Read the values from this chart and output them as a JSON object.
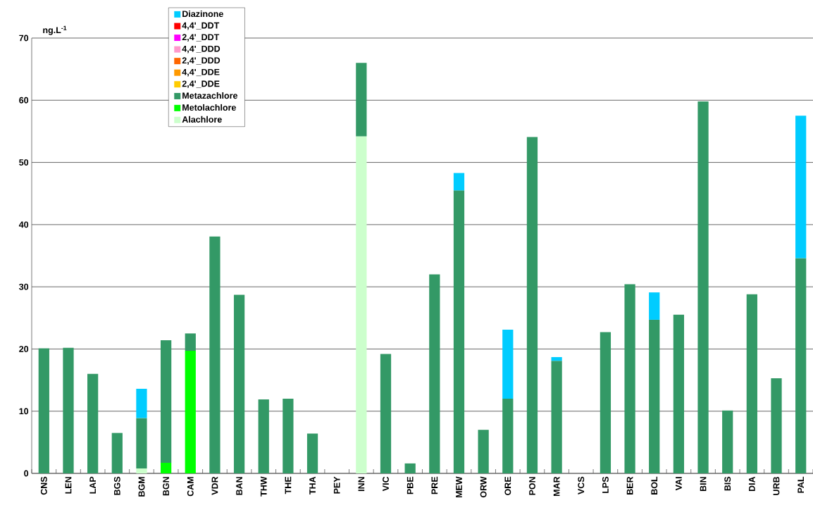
{
  "chart_data": {
    "type": "bar",
    "stacked": true,
    "ylabel": "ng.L$^{-1}$",
    "categories": [
      "CNS",
      "LEN",
      "LAP",
      "BGS",
      "BGM",
      "BGN",
      "CAM",
      "VDR",
      "BAN",
      "THW",
      "THE",
      "THA",
      "PEY",
      "INN",
      "VIC",
      "PBE",
      "PRE",
      "MEW",
      "ORW",
      "ORE",
      "PON",
      "MAR",
      "VCS",
      "LPS",
      "BER",
      "BOL",
      "VAI",
      "BIN",
      "BIS",
      "DIA",
      "URB",
      "PAL"
    ],
    "series": [
      {
        "name": "Alachlore",
        "color": "#ccffcc",
        "values": [
          null,
          null,
          null,
          null,
          0.8,
          null,
          null,
          null,
          null,
          null,
          null,
          null,
          null,
          54.2,
          null,
          null,
          null,
          null,
          null,
          null,
          null,
          null,
          null,
          null,
          null,
          null,
          null,
          null,
          null,
          null,
          null,
          null
        ]
      },
      {
        "name": "Metolachlore",
        "color": "#00ff00",
        "values": [
          null,
          null,
          null,
          null,
          null,
          1.7,
          19.7,
          null,
          null,
          null,
          null,
          null,
          null,
          null,
          null,
          null,
          null,
          null,
          null,
          null,
          null,
          null,
          null,
          null,
          null,
          null,
          null,
          null,
          null,
          null,
          null,
          null
        ]
      },
      {
        "name": "Metazachlore",
        "color": "#339966",
        "values": [
          20.1,
          20.2,
          16.0,
          6.5,
          8.1,
          19.7,
          2.8,
          38.1,
          28.7,
          11.9,
          12.0,
          6.4,
          null,
          11.8,
          19.2,
          1.6,
          32.0,
          45.5,
          7.0,
          12.0,
          54.1,
          18.1,
          null,
          22.7,
          30.4,
          24.7,
          25.5,
          59.8,
          10.1,
          28.8,
          15.3,
          34.6
        ]
      },
      {
        "name": "2,4'_DDE",
        "color": "#ffcc00",
        "values": [
          null,
          null,
          null,
          null,
          null,
          null,
          null,
          null,
          null,
          null,
          null,
          null,
          null,
          null,
          null,
          null,
          null,
          null,
          null,
          null,
          null,
          null,
          null,
          null,
          null,
          null,
          null,
          null,
          null,
          null,
          null,
          null
        ]
      },
      {
        "name": "4,4'_DDE",
        "color": "#ff9900",
        "values": [
          null,
          null,
          null,
          null,
          null,
          null,
          null,
          null,
          null,
          null,
          null,
          null,
          null,
          null,
          null,
          null,
          null,
          null,
          null,
          null,
          null,
          null,
          null,
          null,
          null,
          null,
          null,
          null,
          null,
          null,
          null,
          null
        ]
      },
      {
        "name": "2,4'_DDD",
        "color": "#ff6600",
        "values": [
          null,
          null,
          null,
          null,
          null,
          null,
          null,
          null,
          null,
          null,
          null,
          null,
          null,
          null,
          null,
          null,
          null,
          null,
          null,
          null,
          null,
          null,
          null,
          null,
          null,
          null,
          null,
          null,
          null,
          null,
          null,
          null
        ]
      },
      {
        "name": "4,4'_DDD",
        "color": "#ff99cc",
        "values": [
          null,
          null,
          null,
          null,
          null,
          null,
          null,
          null,
          null,
          null,
          null,
          null,
          null,
          null,
          null,
          null,
          null,
          null,
          null,
          null,
          null,
          null,
          null,
          null,
          null,
          null,
          null,
          null,
          null,
          null,
          null,
          null
        ]
      },
      {
        "name": "2,4'_DDT",
        "color": "#ff00ff",
        "values": [
          null,
          null,
          null,
          null,
          null,
          null,
          null,
          null,
          null,
          null,
          null,
          null,
          null,
          null,
          null,
          null,
          null,
          null,
          null,
          null,
          null,
          null,
          null,
          null,
          null,
          null,
          null,
          null,
          null,
          null,
          null,
          null
        ]
      },
      {
        "name": "4,4'_DDT",
        "color": "#ff0000",
        "values": [
          null,
          null,
          null,
          null,
          null,
          null,
          null,
          null,
          null,
          null,
          null,
          null,
          null,
          null,
          null,
          null,
          null,
          null,
          null,
          null,
          null,
          null,
          null,
          null,
          null,
          null,
          null,
          null,
          null,
          null,
          null,
          null
        ]
      },
      {
        "name": "Diazinone",
        "color": "#00ccff",
        "values": [
          null,
          null,
          null,
          null,
          4.7,
          null,
          null,
          null,
          null,
          null,
          null,
          null,
          null,
          null,
          null,
          null,
          null,
          2.8,
          null,
          11.1,
          null,
          0.6,
          null,
          null,
          null,
          4.4,
          null,
          null,
          null,
          null,
          null,
          22.9
        ]
      }
    ],
    "ylim": [
      0,
      70
    ],
    "yticks": [
      0,
      10,
      20,
      30,
      40,
      50,
      60,
      70
    ],
    "grid": "y",
    "legend": "top left"
  }
}
